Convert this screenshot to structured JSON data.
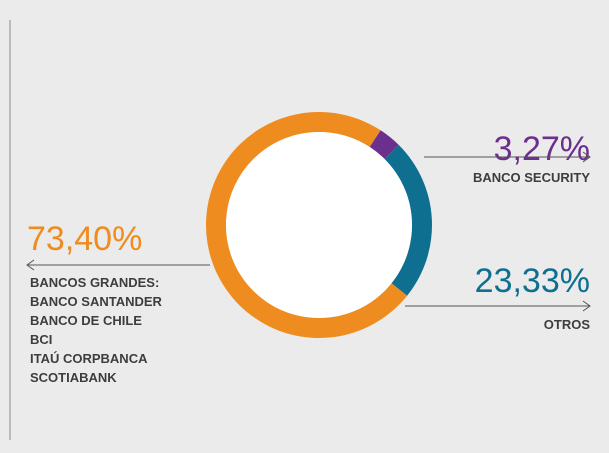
{
  "chart_data": {
    "type": "donut",
    "categories": [
      "BANCO SECURITY",
      "OTROS",
      "BANCOS GRANDES:"
    ],
    "values": [
      3.27,
      23.33,
      73.4
    ],
    "value_labels": [
      "3,27%",
      "23,33%",
      "73,40%"
    ],
    "colors": [
      "#6b2f8e",
      "#0f6f90",
      "#ee8c20"
    ],
    "members": [
      "BANCO SANTANDER",
      "BANCO DE CHILE",
      "BCI",
      "ITAÚ CORPBANCA",
      "SCOTIABANK"
    ]
  }
}
